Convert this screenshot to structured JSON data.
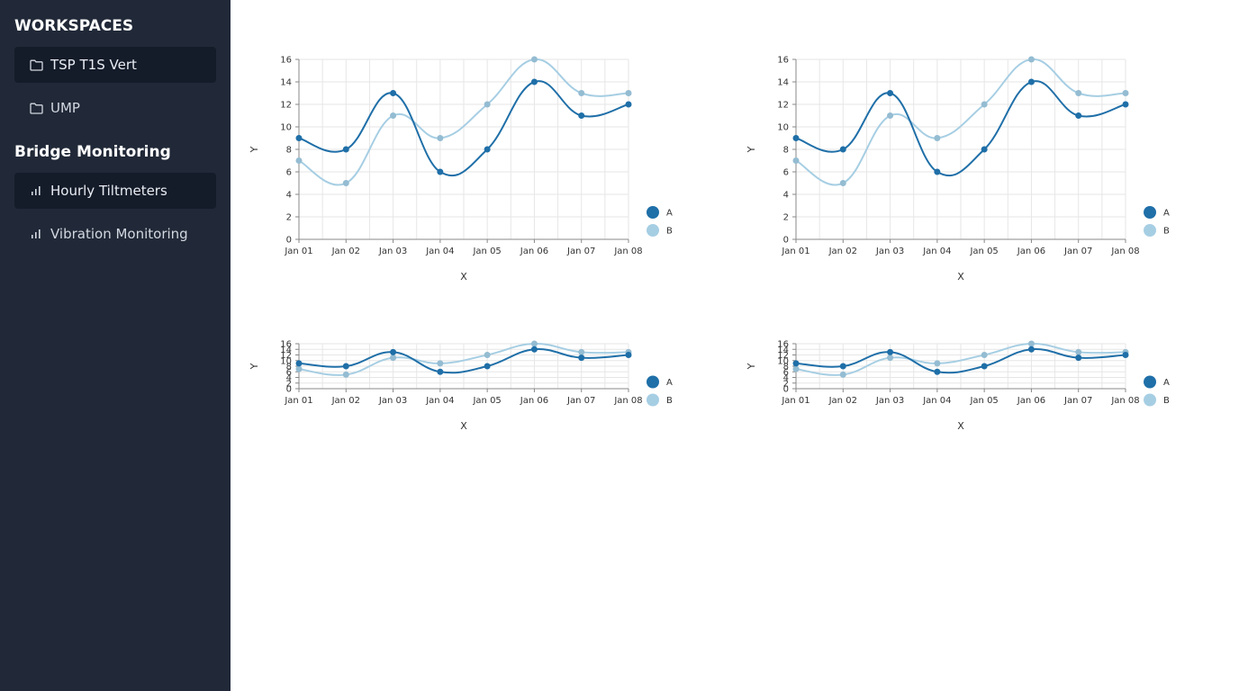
{
  "sidebar": {
    "workspaces_title": "WORKSPACES",
    "workspaces": [
      {
        "label": "TSP T1S Vert",
        "icon": "folder-icon",
        "active": true
      },
      {
        "label": "UMP",
        "icon": "folder-icon",
        "active": false
      }
    ],
    "monitoring_title": "Bridge Monitoring",
    "monitoring": [
      {
        "label": "Hourly Tiltmeters",
        "icon": "bar-chart-icon",
        "active": true
      },
      {
        "label": "Vibration Monitoring",
        "icon": "bar-chart-icon",
        "active": false
      }
    ]
  },
  "colors": {
    "sidebar_bg": "#212938",
    "active_item_bg": "#141b29",
    "series_a": "#1f6fa8",
    "series_b": "#a6cee3"
  },
  "chart_data": [
    {
      "type": "line",
      "categories": [
        "Jan 01",
        "Jan 02",
        "Jan 03",
        "Jan 04",
        "Jan 05",
        "Jan 06",
        "Jan 07",
        "Jan 08"
      ],
      "series": [
        {
          "name": "A",
          "values": [
            9,
            8,
            13,
            6,
            8,
            14,
            11,
            12
          ],
          "color": "#1f6fa8"
        },
        {
          "name": "B",
          "values": [
            7,
            5,
            11,
            9,
            12,
            16,
            13,
            13
          ],
          "color": "#a6cee3"
        }
      ],
      "yticks": [
        0,
        2,
        4,
        6,
        8,
        10,
        12,
        14,
        16
      ],
      "ylim": [
        0,
        16
      ],
      "xlabel": "X",
      "ylabel": "Y",
      "grid": true,
      "legend": "right"
    },
    {
      "type": "line",
      "categories": [
        "Jan 01",
        "Jan 02",
        "Jan 03",
        "Jan 04",
        "Jan 05",
        "Jan 06",
        "Jan 07",
        "Jan 08"
      ],
      "series": [
        {
          "name": "A",
          "values": [
            9,
            8,
            13,
            6,
            8,
            14,
            11,
            12
          ],
          "color": "#1f6fa8"
        },
        {
          "name": "B",
          "values": [
            7,
            5,
            11,
            9,
            12,
            16,
            13,
            13
          ],
          "color": "#a6cee3"
        }
      ],
      "yticks": [
        0,
        2,
        4,
        6,
        8,
        10,
        12,
        14,
        16
      ],
      "ylim": [
        0,
        16
      ],
      "xlabel": "X",
      "ylabel": "Y",
      "grid": true,
      "legend": "right"
    },
    {
      "type": "line",
      "categories": [
        "Jan 01",
        "Jan 02",
        "Jan 03",
        "Jan 04",
        "Jan 05",
        "Jan 06",
        "Jan 07",
        "Jan 08"
      ],
      "series": [
        {
          "name": "A",
          "values": [
            9,
            8,
            13,
            6,
            8,
            14,
            11,
            12
          ],
          "color": "#1f6fa8"
        },
        {
          "name": "B",
          "values": [
            7,
            5,
            11,
            9,
            12,
            16,
            13,
            13
          ],
          "color": "#a6cee3"
        }
      ],
      "yticks": [
        0,
        2,
        4,
        6,
        8,
        10,
        12,
        14,
        16
      ],
      "ylim": [
        0,
        16
      ],
      "xlabel": "X",
      "ylabel": "Y",
      "grid": true,
      "legend": "right"
    },
    {
      "type": "line",
      "categories": [
        "Jan 01",
        "Jan 02",
        "Jan 03",
        "Jan 04",
        "Jan 05",
        "Jan 06",
        "Jan 07",
        "Jan 08"
      ],
      "series": [
        {
          "name": "A",
          "values": [
            9,
            8,
            13,
            6,
            8,
            14,
            11,
            12
          ],
          "color": "#1f6fa8"
        },
        {
          "name": "B",
          "values": [
            7,
            5,
            11,
            9,
            12,
            16,
            13,
            13
          ],
          "color": "#a6cee3"
        }
      ],
      "yticks": [
        0,
        2,
        4,
        6,
        8,
        10,
        12,
        14,
        16
      ],
      "ylim": [
        0,
        16
      ],
      "xlabel": "X",
      "ylabel": "Y",
      "grid": true,
      "legend": "right"
    }
  ]
}
